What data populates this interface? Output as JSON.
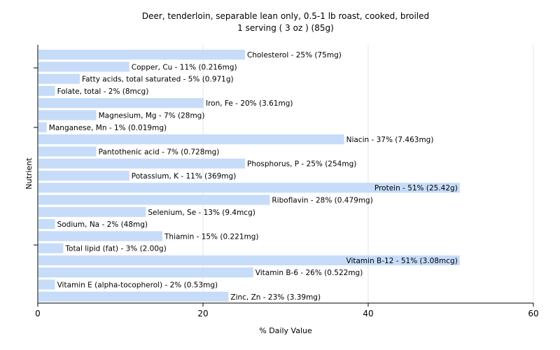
{
  "chart_data": {
    "type": "bar",
    "orientation": "horizontal",
    "title": "Deer, tenderloin, separable lean only, 0.5-1 lb roast, cooked, broiled",
    "subtitle": "1 serving ( 3 oz ) (85g)",
    "xlabel": "% Daily Value",
    "ylabel": "Nutrient",
    "xlim": [
      0,
      60
    ],
    "xticks": [
      0,
      20,
      40,
      60
    ],
    "grid": "vertical",
    "bar_color": "#c6dcf9",
    "categories": [
      "Cholesterol",
      "Copper, Cu",
      "Fatty acids, total saturated",
      "Folate, total",
      "Iron, Fe",
      "Magnesium, Mg",
      "Manganese, Mn",
      "Niacin",
      "Pantothenic acid",
      "Phosphorus, P",
      "Potassium, K",
      "Protein",
      "Riboflavin",
      "Selenium, Se",
      "Sodium, Na",
      "Thiamin",
      "Total lipid (fat)",
      "Vitamin B-12",
      "Vitamin B-6",
      "Vitamin E (alpha-tocopherol)",
      "Zinc, Zn"
    ],
    "values": [
      25,
      11,
      5,
      2,
      20,
      7,
      1,
      37,
      7,
      25,
      11,
      51,
      28,
      13,
      2,
      15,
      3,
      51,
      26,
      2,
      23
    ],
    "labels": [
      "Cholesterol - 25% (75mg)",
      "Copper, Cu - 11% (0.216mg)",
      "Fatty acids, total saturated - 5% (0.971g)",
      "Folate, total - 2% (8mcg)",
      "Iron, Fe - 20% (3.61mg)",
      "Magnesium, Mg - 7% (28mg)",
      "Manganese, Mn - 1% (0.019mg)",
      "Niacin - 37% (7.463mg)",
      "Pantothenic acid - 7% (0.728mg)",
      "Phosphorus, P - 25% (254mg)",
      "Potassium, K - 11% (369mg)",
      "Protein - 51% (25.42g)",
      "Riboflavin - 28% (0.479mg)",
      "Selenium, Se - 13% (9.4mcg)",
      "Sodium, Na - 2% (48mg)",
      "Thiamin - 15% (0.221mg)",
      "Total lipid (fat) - 3% (2.00g)",
      "Vitamin B-12 - 51% (3.08mcg)",
      "Vitamin B-6 - 26% (0.522mg)",
      "Vitamin E (alpha-tocopherol) - 2% (0.53mg)",
      "Zinc, Zn - 23% (3.39mg)"
    ]
  }
}
